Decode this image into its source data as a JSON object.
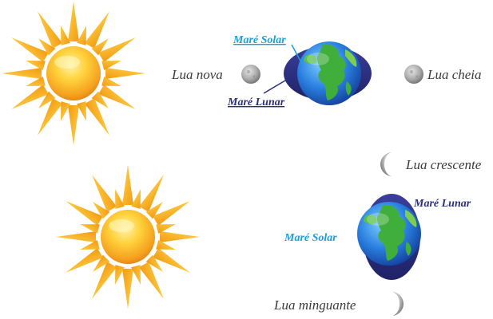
{
  "top_panel": {
    "new_moon_label": "Lua nova",
    "full_moon_label": "Lua cheia",
    "solar_tide_label": "Maré Solar",
    "lunar_tide_label": "Maré Lunar"
  },
  "bottom_panel": {
    "first_quarter_label": "Lua crescente",
    "last_quarter_label": "Lua minguante",
    "solar_tide_label": "Maré Solar",
    "lunar_tide_label": "Maré Lunar"
  },
  "colors": {
    "lunar_tide": "#2b2f7a",
    "solar_tide": "#1aa0d8",
    "sun_core": "#f5a623",
    "sun_rays": "#f7b52a",
    "ocean": "#1e6fd0",
    "land": "#3fae3a"
  },
  "icons": [
    "sun-icon",
    "earth-icon",
    "moon-icon"
  ]
}
